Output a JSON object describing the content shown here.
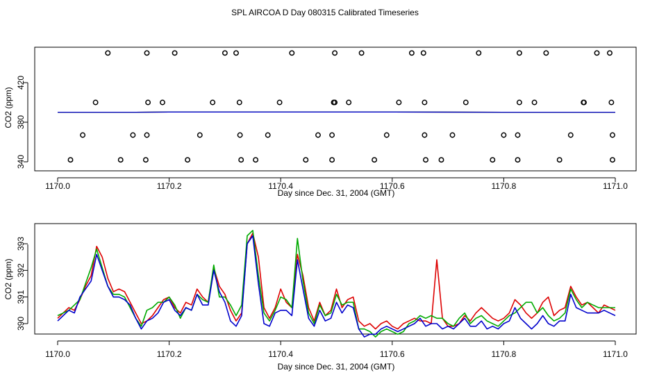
{
  "title": "SPL AIRCOA D  Day 080315  Calibrated Timeseries",
  "colors": {
    "red": "#dd0000",
    "green": "#00aa00",
    "blue": "#0000cc",
    "axis": "#000000"
  },
  "chart_data": [
    {
      "type": "scatter",
      "xlabel": "Day since Dec. 31, 2004 (GMT)",
      "ylabel": "CO2 (ppm)",
      "xlim": [
        1169.96,
        1171.02
      ],
      "ylim": [
        335,
        456
      ],
      "xticks": [
        1170.0,
        1170.2,
        1170.4,
        1170.6,
        1170.8,
        1171.0
      ],
      "xtick_labels": [
        "1170.0",
        "1170.2",
        "1170.4",
        "1170.6",
        "1170.8",
        "1171.0"
      ],
      "yticks": [
        340,
        380,
        420
      ],
      "ytick_labels": [
        "340",
        "380",
        "420"
      ],
      "points": {
        "level_450": [
          1170.09,
          1170.16,
          1170.21,
          1170.3,
          1170.32,
          1170.42,
          1170.497,
          1170.545,
          1170.635,
          1170.656,
          1170.755,
          1170.828,
          1170.876,
          1170.967,
          1170.99
        ],
        "level_400": [
          1170.068,
          1170.162,
          1170.188,
          1170.278,
          1170.326,
          1170.398,
          1170.495,
          1170.497,
          1170.522,
          1170.612,
          1170.658,
          1170.732,
          1170.828,
          1170.855,
          1170.943,
          1170.944,
          1170.993
        ],
        "level_367": [
          1170.045,
          1170.135,
          1170.16,
          1170.255,
          1170.327,
          1170.377,
          1170.467,
          1170.492,
          1170.59,
          1170.658,
          1170.708,
          1170.8,
          1170.825,
          1170.92,
          1170.995
        ],
        "level_342": [
          1170.023,
          1170.113,
          1170.158,
          1170.233,
          1170.329,
          1170.355,
          1170.445,
          1170.492,
          1170.568,
          1170.66,
          1170.688,
          1170.78,
          1170.825,
          1170.9,
          1170.995
        ]
      },
      "series": [
        {
          "name": "red",
          "color": "red",
          "values": [
            390.1,
            390.1,
            390.1,
            390.3,
            390.3,
            390.3,
            390.3,
            390.3,
            390.3,
            390.1,
            390.1
          ]
        },
        {
          "name": "green",
          "color": "green",
          "values": [
            390.1,
            390.1,
            390.1,
            390.3,
            390.3,
            390.3,
            390.3,
            390.3,
            390.3,
            390.1,
            390.1
          ]
        },
        {
          "name": "blue",
          "color": "blue",
          "values": [
            390.1,
            390.1,
            390.1,
            390.3,
            390.3,
            390.3,
            390.3,
            390.3,
            390.3,
            390.1,
            390.1
          ]
        }
      ],
      "series_x": [
        1170.0,
        1170.07,
        1170.14,
        1170.2,
        1170.28,
        1170.34,
        1170.43,
        1170.5,
        1170.6,
        1170.8,
        1171.0
      ]
    },
    {
      "type": "line",
      "xlabel": "Day since Dec. 31, 2004 (GMT)",
      "ylabel": "CO2 (ppm)",
      "xlim": [
        1169.96,
        1171.02
      ],
      "ylim": [
        389.4,
        393.8
      ],
      "xticks": [
        1170.0,
        1170.2,
        1170.4,
        1170.6,
        1170.8,
        1171.0
      ],
      "xtick_labels": [
        "1170.0",
        "1170.2",
        "1170.4",
        "1170.6",
        "1170.8",
        "1171.0"
      ],
      "yticks": [
        390,
        391,
        392,
        393
      ],
      "ytick_labels": [
        "390",
        "391",
        "392",
        "393"
      ],
      "x": [
        1170.0,
        1170.01,
        1170.02,
        1170.03,
        1170.04,
        1170.05,
        1170.06,
        1170.07,
        1170.08,
        1170.09,
        1170.1,
        1170.11,
        1170.12,
        1170.13,
        1170.14,
        1170.15,
        1170.16,
        1170.17,
        1170.18,
        1170.19,
        1170.2,
        1170.21,
        1170.22,
        1170.23,
        1170.24,
        1170.25,
        1170.26,
        1170.27,
        1170.28,
        1170.29,
        1170.3,
        1170.31,
        1170.32,
        1170.33,
        1170.34,
        1170.35,
        1170.36,
        1170.37,
        1170.38,
        1170.39,
        1170.4,
        1170.41,
        1170.42,
        1170.43,
        1170.44,
        1170.45,
        1170.46,
        1170.47,
        1170.48,
        1170.49,
        1170.5,
        1170.51,
        1170.52,
        1170.53,
        1170.54,
        1170.55,
        1170.56,
        1170.57,
        1170.58,
        1170.59,
        1170.6,
        1170.61,
        1170.62,
        1170.63,
        1170.64,
        1170.65,
        1170.66,
        1170.67,
        1170.68,
        1170.69,
        1170.7,
        1170.71,
        1170.72,
        1170.73,
        1170.74,
        1170.75,
        1170.76,
        1170.77,
        1170.78,
        1170.79,
        1170.8,
        1170.81,
        1170.82,
        1170.83,
        1170.84,
        1170.85,
        1170.86,
        1170.87,
        1170.88,
        1170.89,
        1170.9,
        1170.91,
        1170.92,
        1170.93,
        1170.94,
        1170.95,
        1170.96,
        1170.97,
        1170.98,
        1170.99,
        1171.0
      ],
      "series": [
        {
          "name": "red",
          "color": "red",
          "values": [
            390.2,
            390.4,
            390.6,
            390.5,
            390.9,
            391.4,
            391.8,
            392.9,
            392.5,
            391.7,
            391.2,
            391.3,
            391.2,
            390.8,
            390.4,
            390.0,
            390.1,
            390.3,
            390.6,
            390.9,
            391.0,
            390.6,
            390.4,
            390.8,
            390.7,
            391.3,
            391.0,
            390.8,
            392.1,
            391.4,
            391.1,
            390.5,
            390.1,
            390.4,
            393.0,
            393.4,
            392.5,
            390.6,
            390.2,
            390.6,
            391.3,
            390.8,
            390.6,
            392.6,
            391.8,
            390.6,
            390.1,
            390.8,
            390.3,
            390.5,
            391.3,
            390.6,
            390.9,
            391.0,
            390.1,
            389.9,
            390.0,
            389.8,
            390.0,
            390.1,
            389.9,
            389.8,
            390.0,
            390.1,
            390.2,
            390.1,
            390.1,
            390.0,
            392.4,
            390.2,
            389.9,
            389.9,
            390.0,
            390.3,
            390.1,
            390.4,
            390.6,
            390.4,
            390.2,
            390.1,
            390.2,
            390.4,
            390.9,
            390.7,
            390.4,
            390.2,
            390.4,
            390.8,
            391.0,
            390.3,
            390.5,
            390.6,
            391.4,
            391.0,
            390.7,
            390.8,
            390.6,
            390.4,
            390.7,
            390.6,
            390.5
          ]
        },
        {
          "name": "green",
          "color": "green",
          "values": [
            390.3,
            390.4,
            390.5,
            390.7,
            390.9,
            391.5,
            392.1,
            392.8,
            392.1,
            391.4,
            391.1,
            391.1,
            391.0,
            390.6,
            390.2,
            389.9,
            390.5,
            390.6,
            390.8,
            390.8,
            391.0,
            390.7,
            390.2,
            390.6,
            390.5,
            391.1,
            390.9,
            390.8,
            392.2,
            391.0,
            391.0,
            390.7,
            390.3,
            390.7,
            393.3,
            393.5,
            391.8,
            390.4,
            390.1,
            390.5,
            391.0,
            390.9,
            390.6,
            393.2,
            391.6,
            390.4,
            390.0,
            390.7,
            390.3,
            390.4,
            391.1,
            390.7,
            390.8,
            390.8,
            389.8,
            389.8,
            389.7,
            389.5,
            389.7,
            389.8,
            389.7,
            389.6,
            389.7,
            390.0,
            390.1,
            390.3,
            390.2,
            390.3,
            390.2,
            390.2,
            390.0,
            389.9,
            390.2,
            390.4,
            390.0,
            390.2,
            390.3,
            390.1,
            390.0,
            389.9,
            390.1,
            390.3,
            390.4,
            390.6,
            390.8,
            390.8,
            390.4,
            390.6,
            390.3,
            390.1,
            390.2,
            390.4,
            391.3,
            390.9,
            390.6,
            390.8,
            390.7,
            390.6,
            390.6,
            390.6,
            390.6
          ]
        },
        {
          "name": "blue",
          "color": "blue",
          "values": [
            390.1,
            390.3,
            390.5,
            390.4,
            391.0,
            391.3,
            391.6,
            392.6,
            392.0,
            391.4,
            391.0,
            391.0,
            390.9,
            390.7,
            390.2,
            389.8,
            390.1,
            390.2,
            390.4,
            390.8,
            390.9,
            390.5,
            390.3,
            390.6,
            390.5,
            391.1,
            390.7,
            390.7,
            392.0,
            391.2,
            390.8,
            390.1,
            389.9,
            390.3,
            393.0,
            393.3,
            391.5,
            390.0,
            389.9,
            390.4,
            390.5,
            390.5,
            390.3,
            392.4,
            391.3,
            390.2,
            389.9,
            390.5,
            390.1,
            390.2,
            390.8,
            390.4,
            390.7,
            390.6,
            389.8,
            389.5,
            389.6,
            389.6,
            389.8,
            389.9,
            389.8,
            389.7,
            389.8,
            389.9,
            390.0,
            390.2,
            389.9,
            390.0,
            390.0,
            389.8,
            389.9,
            389.8,
            390.0,
            390.2,
            389.9,
            389.9,
            390.1,
            389.8,
            389.9,
            389.8,
            390.0,
            390.1,
            390.6,
            390.2,
            390.0,
            389.8,
            390.0,
            390.3,
            390.0,
            389.9,
            390.1,
            390.1,
            391.1,
            390.6,
            390.5,
            390.4,
            390.4,
            390.4,
            390.5,
            390.4,
            390.3
          ]
        }
      ]
    }
  ]
}
